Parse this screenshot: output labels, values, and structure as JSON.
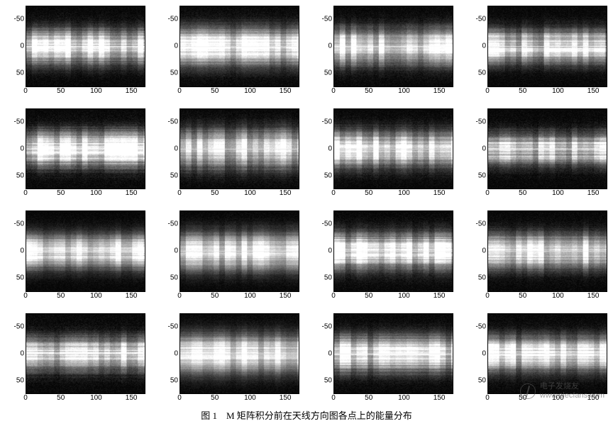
{
  "figure": {
    "caption": "图 1　M 矩阵积分前在天线方向图各点上的能量分布",
    "caption_fontsize": 13,
    "cols": 4,
    "rows": 4,
    "background_color": "#ffffff",
    "tick_color": "#000000",
    "tick_fontsize": 10,
    "panel_border_color": "#000000"
  },
  "axes": {
    "x": {
      "min": 0,
      "max": 170,
      "ticks": [
        0,
        50,
        100,
        150
      ]
    },
    "y": {
      "min": -75,
      "max": 75,
      "ticks": [
        -50,
        0,
        50
      ]
    }
  },
  "heatmap_style": {
    "type": "heatmap",
    "colormap": "gray",
    "cmap_min_color": "#000000",
    "cmap_max_color": "#ffffff",
    "xres": 170,
    "yres": 150
  },
  "panels": [
    {
      "seed": 101,
      "center_bright": 1.0,
      "band_sigma": 22,
      "col_noise": 0.35,
      "row_noise": 0.18,
      "fine_noise": 0.06
    },
    {
      "seed": 102,
      "center_bright": 0.95,
      "band_sigma": 24,
      "col_noise": 0.3,
      "row_noise": 0.16,
      "fine_noise": 0.06
    },
    {
      "seed": 103,
      "center_bright": 0.98,
      "band_sigma": 23,
      "col_noise": 0.32,
      "row_noise": 0.17,
      "fine_noise": 0.06
    },
    {
      "seed": 104,
      "center_bright": 0.92,
      "band_sigma": 21,
      "col_noise": 0.33,
      "row_noise": 0.2,
      "fine_noise": 0.06
    },
    {
      "seed": 105,
      "center_bright": 1.0,
      "band_sigma": 22,
      "col_noise": 0.38,
      "row_noise": 0.22,
      "fine_noise": 0.07
    },
    {
      "seed": 106,
      "center_bright": 0.9,
      "band_sigma": 25,
      "col_noise": 0.34,
      "row_noise": 0.18,
      "fine_noise": 0.06
    },
    {
      "seed": 107,
      "center_bright": 0.96,
      "band_sigma": 23,
      "col_noise": 0.31,
      "row_noise": 0.16,
      "fine_noise": 0.06
    },
    {
      "seed": 108,
      "center_bright": 0.88,
      "band_sigma": 20,
      "col_noise": 0.35,
      "row_noise": 0.24,
      "fine_noise": 0.07
    },
    {
      "seed": 109,
      "center_bright": 0.97,
      "band_sigma": 22,
      "col_noise": 0.3,
      "row_noise": 0.15,
      "fine_noise": 0.05
    },
    {
      "seed": 110,
      "center_bright": 0.94,
      "band_sigma": 24,
      "col_noise": 0.28,
      "row_noise": 0.14,
      "fine_noise": 0.05
    },
    {
      "seed": 111,
      "center_bright": 0.99,
      "band_sigma": 23,
      "col_noise": 0.33,
      "row_noise": 0.18,
      "fine_noise": 0.06
    },
    {
      "seed": 112,
      "center_bright": 0.95,
      "band_sigma": 22,
      "col_noise": 0.32,
      "row_noise": 0.17,
      "fine_noise": 0.06
    },
    {
      "seed": 113,
      "center_bright": 0.93,
      "band_sigma": 21,
      "col_noise": 0.36,
      "row_noise": 0.22,
      "fine_noise": 0.07
    },
    {
      "seed": 114,
      "center_bright": 0.96,
      "band_sigma": 25,
      "col_noise": 0.27,
      "row_noise": 0.13,
      "fine_noise": 0.05
    },
    {
      "seed": 115,
      "center_bright": 0.92,
      "band_sigma": 23,
      "col_noise": 0.34,
      "row_noise": 0.2,
      "fine_noise": 0.06
    },
    {
      "seed": 116,
      "center_bright": 0.94,
      "band_sigma": 22,
      "col_noise": 0.31,
      "row_noise": 0.17,
      "fine_noise": 0.06
    }
  ],
  "watermark": {
    "line1": "电子发烧友",
    "line2": "www.elecfans.com",
    "color": "#5a5a5a",
    "opacity": 0.6
  }
}
